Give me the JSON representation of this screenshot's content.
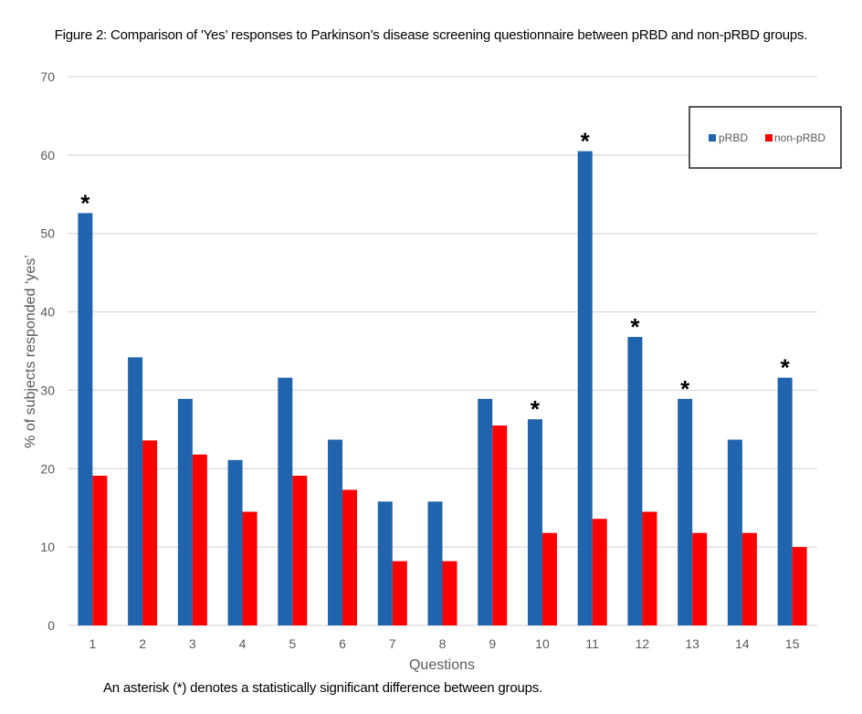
{
  "figure_title": "Figure 2: Comparison of 'Yes’ responses to Parkinson’s disease screening questionnaire between pRBD and non-pRBD groups.",
  "footnote": "An asterisk (*) denotes a statistically significant difference between groups.",
  "chart_data": {
    "type": "bar",
    "title": "Figure 2: Comparison of 'Yes’ responses to Parkinson’s disease screening questionnaire between pRBD and non-pRBD groups.",
    "xlabel": "Questions",
    "ylabel": "% of subjects responded ‘yes’",
    "ylim": [
      0,
      70
    ],
    "yticks": [
      "0",
      "10",
      "20",
      "30",
      "40",
      "50",
      "60",
      "70"
    ],
    "grid": true,
    "legend_position": "top-right",
    "categories": [
      "1",
      "2",
      "3",
      "4",
      "5",
      "6",
      "7",
      "8",
      "9",
      "10",
      "11",
      "12",
      "13",
      "14",
      "15"
    ],
    "series": [
      {
        "name": "pRBD",
        "color": "#1f64ad",
        "values": [
          52.6,
          34.2,
          28.9,
          21.1,
          31.6,
          23.7,
          15.8,
          15.8,
          28.9,
          26.3,
          60.5,
          36.8,
          28.9,
          23.7,
          31.6
        ]
      },
      {
        "name": "non-pRBD",
        "color": "#ff0000",
        "values": [
          19.1,
          23.6,
          21.8,
          14.5,
          19.1,
          17.3,
          8.2,
          8.2,
          25.5,
          11.8,
          13.6,
          14.5,
          11.8,
          11.8,
          10.0
        ]
      }
    ],
    "significant": [
      "1",
      "10",
      "11",
      "12",
      "13",
      "15"
    ],
    "significance_marker": "*"
  }
}
